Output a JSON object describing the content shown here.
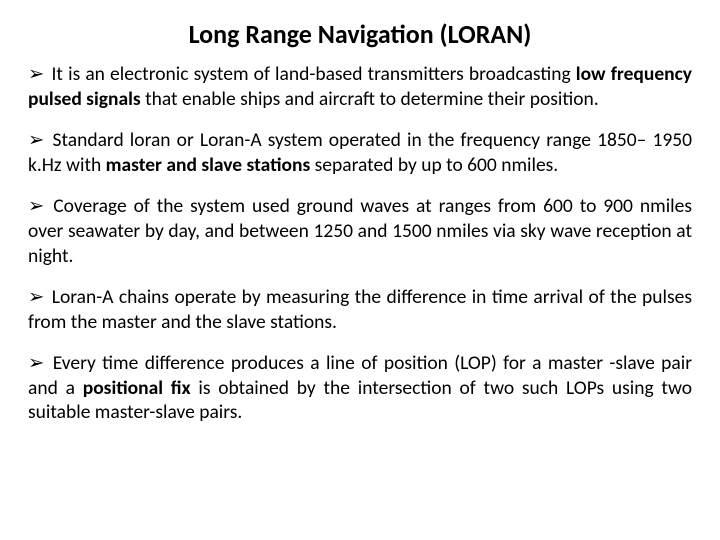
{
  "title": "Long Range Navigation (LORAN)",
  "bullets": [
    {
      "pre": "It is an electronic system of land-based transmitters broadcasting ",
      "b1": "low frequency pulsed signals",
      "post": " that enable ships and aircraft to determine their position."
    },
    {
      "pre": "Standard loran or Loran-A system operated in the frequency range 1850– 1950 k.Hz with ",
      "b1": "master and slave stations",
      "post": " separated by up to 600 nmiles."
    },
    {
      "pre": "Coverage of the system used ground waves at ranges from 600 to 900 nmiles over seawater by day, and between 1250 and 1500 nmiles via sky wave reception at night.",
      "b1": "",
      "post": ""
    },
    {
      "pre": "Loran-A chains operate by measuring the difference in time arrival of the pulses from the master and the slave stations.",
      "b1": "",
      "post": ""
    },
    {
      "pre": "Every time difference produces a line of position (LOP) for a master -slave pair and a ",
      "b1": "positional fix",
      "post": " is obtained by the intersection of two such LOPs using two suitable master-slave pairs."
    }
  ],
  "arrow_glyph": "➢"
}
